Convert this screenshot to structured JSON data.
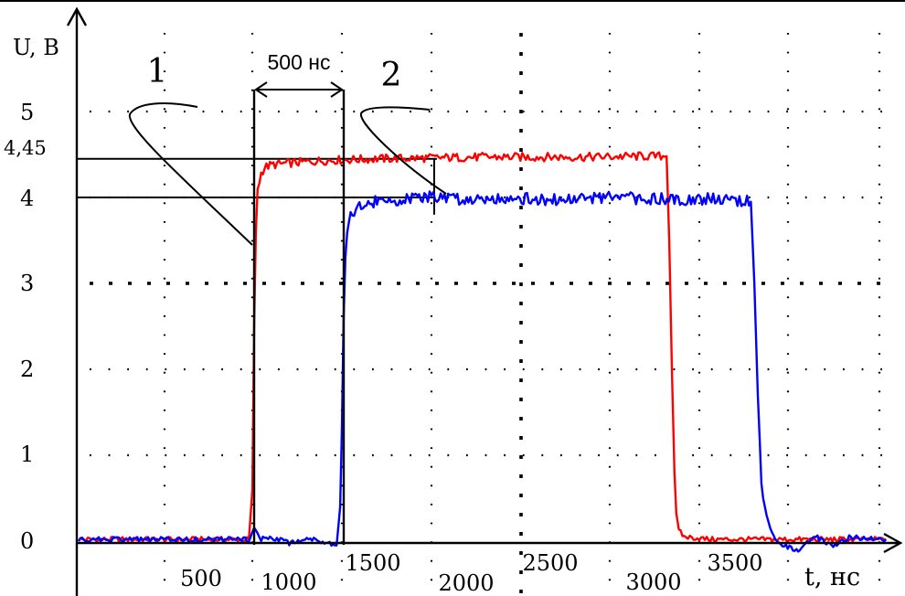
{
  "chart_data": {
    "type": "line",
    "xlabel": "t, нс",
    "ylabel": "U, В",
    "xlim": [
      -500,
      4100
    ],
    "ylim": [
      0,
      5.85
    ],
    "grid": true,
    "x_ticks": [
      {
        "value": 500,
        "label": "500"
      },
      {
        "value": 1000,
        "label": "1000"
      },
      {
        "value": 1500,
        "label": "1500"
      },
      {
        "value": 2000,
        "label": "2000"
      },
      {
        "value": 2500,
        "label": "2500"
      },
      {
        "value": 3000,
        "label": "3000"
      },
      {
        "value": 3500,
        "label": "3500"
      }
    ],
    "y_ticks": [
      {
        "value": 0,
        "label": "0"
      },
      {
        "value": 1,
        "label": "1"
      },
      {
        "value": 2,
        "label": "2"
      },
      {
        "value": 3,
        "label": "3"
      },
      {
        "value": 4,
        "label": "4"
      },
      {
        "value": 4.45,
        "label": "4,45"
      },
      {
        "value": 5,
        "label": "5"
      }
    ],
    "reference_levels": [
      4.45,
      4.0
    ],
    "interval_annotation": {
      "label": "500 нс",
      "x_start": 490,
      "x_end": 990
    },
    "series": [
      {
        "name": "1",
        "color": "#ff0000",
        "x": [
          -500,
          470,
          490,
          500,
          510,
          520,
          540,
          560,
          600,
          700,
          900,
          1200,
          1500,
          1800,
          2100,
          2400,
          2700,
          2850,
          2865,
          2880,
          2895,
          2905,
          2920,
          2950,
          3100,
          3400,
          3700,
          4100
        ],
        "y": [
          0.02,
          0.02,
          0.6,
          2.5,
          3.6,
          4.1,
          4.28,
          4.35,
          4.38,
          4.4,
          4.43,
          4.45,
          4.46,
          4.47,
          4.47,
          4.47,
          4.48,
          4.48,
          3.5,
          2.0,
          0.8,
          0.3,
          0.12,
          0.05,
          0.02,
          0.02,
          0.02,
          0.02
        ]
      },
      {
        "name": "2",
        "color": "#0000ff",
        "x": [
          -500,
          480,
          500,
          540,
          600,
          700,
          800,
          900,
          970,
          990,
          1000,
          1010,
          1020,
          1030,
          1050,
          1100,
          1200,
          1300,
          1400,
          1500,
          1700,
          1900,
          2200,
          2500,
          2800,
          3000,
          3200,
          3330,
          3350,
          3370,
          3390,
          3400,
          3430,
          3460,
          3500,
          3600,
          3700,
          3800,
          3900,
          4100
        ],
        "y": [
          0.02,
          0.02,
          0.15,
          0.02,
          0.05,
          -0.02,
          0.03,
          0.0,
          -0.05,
          0.4,
          1.3,
          2.6,
          3.3,
          3.6,
          3.8,
          3.9,
          3.95,
          3.97,
          3.98,
          4.0,
          3.98,
          4.0,
          3.97,
          4.0,
          3.98,
          3.98,
          3.98,
          3.95,
          3.0,
          1.7,
          0.7,
          0.5,
          0.2,
          0.05,
          -0.05,
          -0.1,
          0.05,
          -0.05,
          0.05,
          0.02
        ]
      }
    ],
    "curve_labels": [
      {
        "series": "1",
        "text": "1"
      },
      {
        "series": "2",
        "text": "2"
      }
    ]
  }
}
